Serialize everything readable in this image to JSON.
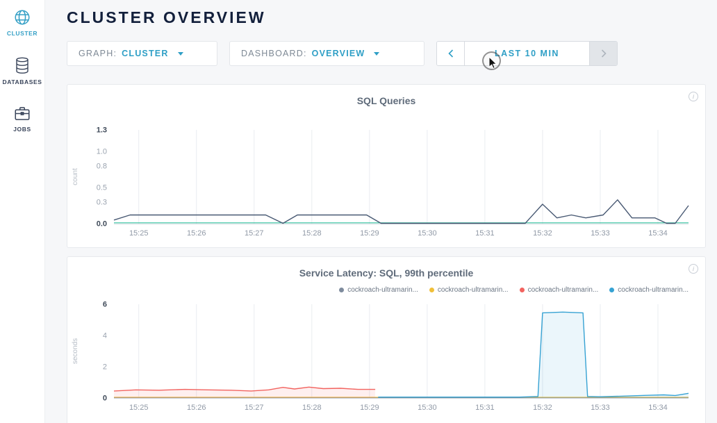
{
  "sidebar": {
    "items": [
      {
        "label": "CLUSTER",
        "icon": "globe-icon",
        "active": true
      },
      {
        "label": "DATABASES",
        "icon": "databases-icon",
        "active": false
      },
      {
        "label": "JOBS",
        "icon": "jobs-icon",
        "active": false
      }
    ]
  },
  "header": {
    "title": "CLUSTER OVERVIEW"
  },
  "controls": {
    "graph_label": "GRAPH:",
    "graph_value": "CLUSTER",
    "dashboard_label": "DASHBOARD:",
    "dashboard_value": "OVERVIEW",
    "time_label": "LAST 10 MIN"
  },
  "colors": {
    "accent": "#35a0c6",
    "navy_line": "#475872",
    "green_line": "#2fbf9d",
    "red_line": "#f2635f",
    "blue_line": "#36a2d3",
    "yellow_line": "#f0bf39",
    "gray_line": "#7e8b9d"
  },
  "chart_data": [
    {
      "type": "line",
      "title": "SQL Queries",
      "ylabel": "count",
      "ylim": [
        0,
        1.3
      ],
      "xlim": [
        24.57,
        34.53
      ],
      "grid": "vertical",
      "yticks": [
        {
          "v": 0,
          "label": "0.0"
        },
        {
          "v": 0.3,
          "label": "0.3"
        },
        {
          "v": 0.5,
          "label": "0.5"
        },
        {
          "v": 0.8,
          "label": "0.8"
        },
        {
          "v": 1.0,
          "label": "1.0"
        },
        {
          "v": 1.3,
          "label": "1.3"
        }
      ],
      "xticks": [
        {
          "v": 25,
          "label": "15:25"
        },
        {
          "v": 26,
          "label": "15:26"
        },
        {
          "v": 27,
          "label": "15:27"
        },
        {
          "v": 28,
          "label": "15:28"
        },
        {
          "v": 29,
          "label": "15:29"
        },
        {
          "v": 30,
          "label": "15:30"
        },
        {
          "v": 31,
          "label": "15:31"
        },
        {
          "v": 32,
          "label": "15:32"
        },
        {
          "v": 33,
          "label": "15:33"
        },
        {
          "v": 34,
          "label": "15:34"
        }
      ],
      "series": [
        {
          "name": "baseline-zero",
          "color": "#2fbf9d",
          "width": 1.2,
          "points": [
            [
              24.57,
              0.012
            ],
            [
              34.53,
              0.012
            ]
          ]
        },
        {
          "name": "sql-queries",
          "color": "#475872",
          "width": 1.4,
          "points": [
            [
              24.57,
              0.05
            ],
            [
              24.85,
              0.12
            ],
            [
              27.2,
              0.12
            ],
            [
              27.5,
              0.005
            ],
            [
              27.75,
              0.12
            ],
            [
              28.95,
              0.12
            ],
            [
              29.2,
              0.005
            ],
            [
              31.7,
              0.005
            ],
            [
              32.0,
              0.27
            ],
            [
              32.25,
              0.08
            ],
            [
              32.5,
              0.12
            ],
            [
              32.75,
              0.08
            ],
            [
              33.05,
              0.12
            ],
            [
              33.3,
              0.33
            ],
            [
              33.55,
              0.08
            ],
            [
              33.95,
              0.08
            ],
            [
              34.15,
              0.005
            ],
            [
              34.3,
              0.005
            ],
            [
              34.53,
              0.25
            ]
          ]
        }
      ]
    },
    {
      "type": "line",
      "title": "Service Latency: SQL, 99th percentile",
      "ylabel": "seconds",
      "ylim": [
        0,
        6
      ],
      "xlim": [
        24.57,
        34.53
      ],
      "grid": "vertical",
      "yticks": [
        {
          "v": 0,
          "label": "0"
        },
        {
          "v": 2,
          "label": "2"
        },
        {
          "v": 4,
          "label": "4"
        },
        {
          "v": 6,
          "label": "6"
        }
      ],
      "xticks": [
        {
          "v": 25,
          "label": "15:25"
        },
        {
          "v": 26,
          "label": "15:26"
        },
        {
          "v": 27,
          "label": "15:27"
        },
        {
          "v": 28,
          "label": "15:28"
        },
        {
          "v": 29,
          "label": "15:29"
        },
        {
          "v": 30,
          "label": "15:30"
        },
        {
          "v": 31,
          "label": "15:31"
        },
        {
          "v": 32,
          "label": "15:32"
        },
        {
          "v": 33,
          "label": "15:33"
        },
        {
          "v": 34,
          "label": "15:34"
        }
      ],
      "legend": [
        {
          "label": "cockroach-ultramarin...",
          "color": "#7e8b9d"
        },
        {
          "label": "cockroach-ultramarin...",
          "color": "#f0bf39"
        },
        {
          "label": "cockroach-ultramarin...",
          "color": "#f2635f"
        },
        {
          "label": "cockroach-ultramarin...",
          "color": "#36a2d3"
        }
      ],
      "series": [
        {
          "name": "node-gray",
          "color": "#7e8b9d",
          "width": 1,
          "points": [
            [
              24.57,
              0.02
            ],
            [
              34.53,
              0.02
            ]
          ]
        },
        {
          "name": "node-yellow",
          "color": "#f0bf39",
          "width": 1,
          "points": [
            [
              24.57,
              0.05
            ],
            [
              34.53,
              0.05
            ]
          ]
        },
        {
          "name": "node-red",
          "color": "#f2635f",
          "width": 1.4,
          "fill": "rgba(242,99,95,0.10)",
          "points": [
            [
              24.57,
              0.45
            ],
            [
              24.95,
              0.52
            ],
            [
              25.35,
              0.5
            ],
            [
              25.8,
              0.55
            ],
            [
              26.2,
              0.52
            ],
            [
              26.6,
              0.5
            ],
            [
              26.95,
              0.45
            ],
            [
              27.25,
              0.52
            ],
            [
              27.5,
              0.68
            ],
            [
              27.7,
              0.58
            ],
            [
              27.95,
              0.7
            ],
            [
              28.2,
              0.6
            ],
            [
              28.5,
              0.62
            ],
            [
              28.8,
              0.55
            ],
            [
              29.1,
              0.55
            ]
          ]
        },
        {
          "name": "node-blue",
          "color": "#36a2d3",
          "width": 1.4,
          "fill": "rgba(54,162,211,0.10)",
          "points": [
            [
              29.15,
              0.06
            ],
            [
              30.5,
              0.06
            ],
            [
              31.6,
              0.06
            ],
            [
              31.92,
              0.1
            ],
            [
              32.0,
              5.45
            ],
            [
              32.35,
              5.5
            ],
            [
              32.7,
              5.45
            ],
            [
              32.78,
              0.1
            ],
            [
              33.0,
              0.08
            ],
            [
              33.4,
              0.12
            ],
            [
              33.8,
              0.17
            ],
            [
              34.1,
              0.2
            ],
            [
              34.3,
              0.16
            ],
            [
              34.53,
              0.3
            ]
          ]
        }
      ]
    }
  ]
}
